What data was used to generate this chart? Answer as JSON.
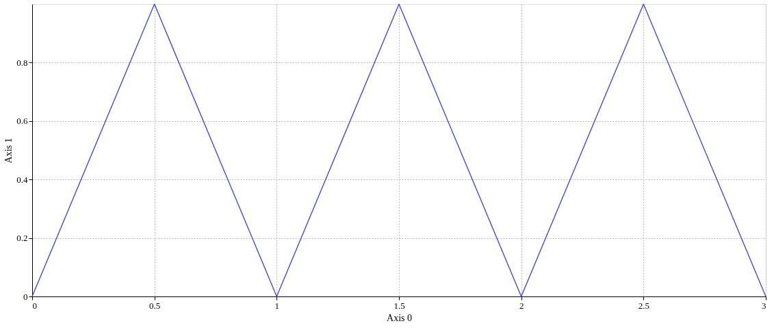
{
  "chart_data": {
    "type": "line",
    "xlabel": "Axis 0",
    "ylabel": "Axis 1",
    "x": [
      0,
      0.5,
      1,
      1.5,
      2,
      2.5,
      3
    ],
    "series": [
      {
        "color": "#3a3aff",
        "values": [
          0,
          1,
          0,
          1,
          0,
          1,
          0
        ]
      }
    ],
    "xlim": [
      0,
      3
    ],
    "xticks": [
      0,
      0.5,
      1,
      1.5,
      2,
      2.5,
      3
    ],
    "ylim": [
      0,
      1
    ],
    "yticks": [
      0,
      0.2,
      0.4,
      0.6,
      0.8
    ],
    "grid": true,
    "marker": "none",
    "line_style": "solid"
  }
}
